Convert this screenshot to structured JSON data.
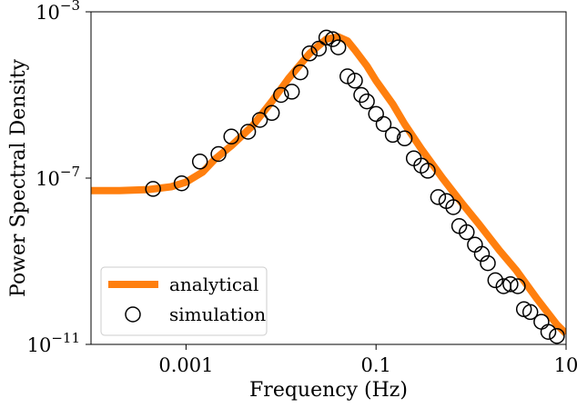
{
  "chart_data": {
    "type": "line",
    "xlabel": "Frequency (Hz)",
    "ylabel": "Power Spectral Density",
    "x_scale": "log",
    "y_scale": "log",
    "xlim": [
      0.0001,
      10
    ],
    "ylim": [
      1e-11,
      0.001
    ],
    "grid": false,
    "legend_position": "lower-left",
    "x_ticks": [
      {
        "value": 0.001,
        "label": "0.001"
      },
      {
        "value": 0.1,
        "label": "0.1"
      },
      {
        "value": 10,
        "label": "10"
      }
    ],
    "y_ticks": [
      {
        "value": 1e-11,
        "base": "10",
        "exp": "−11"
      },
      {
        "value": 1e-07,
        "base": "10",
        "exp": "−7"
      },
      {
        "value": 0.001,
        "base": "10",
        "exp": "−3"
      }
    ],
    "series": [
      {
        "name": "analytical",
        "style": "line",
        "color": "#ff7f0e",
        "x": [
          0.0001,
          0.0002,
          0.0004,
          0.0007,
          0.001,
          0.0015,
          0.002,
          0.003,
          0.005,
          0.008,
          0.012,
          0.02,
          0.03,
          0.04,
          0.05,
          0.06,
          0.08,
          0.1,
          0.15,
          0.2,
          0.3,
          0.5,
          0.8,
          1.2,
          2,
          3,
          5,
          8,
          10
        ],
        "y": [
          5e-08,
          5e-08,
          5.3e-08,
          6.2e-08,
          8e-08,
          1.4e-07,
          2.8e-07,
          6e-07,
          1.8e-06,
          7e-06,
          2.5e-05,
          0.0001,
          0.00022,
          0.00025,
          0.0002,
          0.00012,
          5e-05,
          2.2e-05,
          6e-06,
          2e-06,
          5e-07,
          1e-07,
          2.5e-08,
          8e-09,
          1.8e-09,
          6e-10,
          1.2e-10,
          3e-11,
          1.8e-11
        ]
      },
      {
        "name": "simulation",
        "style": "scatter",
        "color": "#000000",
        "x": [
          0.00045,
          0.0009,
          0.0014,
          0.0022,
          0.003,
          0.0045,
          0.006,
          0.008,
          0.01,
          0.013,
          0.016,
          0.02,
          0.025,
          0.03,
          0.035,
          0.04,
          0.05,
          0.06,
          0.07,
          0.08,
          0.1,
          0.12,
          0.15,
          0.2,
          0.25,
          0.3,
          0.35,
          0.45,
          0.55,
          0.65,
          0.75,
          0.9,
          1.1,
          1.3,
          1.5,
          1.8,
          2.2,
          2.6,
          3.1,
          3.6,
          4.2,
          5.5,
          6.5,
          8
        ],
        "y": [
          5.5e-08,
          7.5e-08,
          2.5e-07,
          3.8e-07,
          1e-06,
          1.3e-06,
          2.5e-06,
          3.7e-06,
          1e-05,
          1.2e-05,
          3.5e-05,
          0.0001,
          0.00013,
          0.00024,
          0.00022,
          0.00014,
          2.8e-05,
          2.2e-05,
          1e-05,
          7e-06,
          3.5e-06,
          2e-06,
          1.1e-06,
          9e-07,
          3e-07,
          2e-07,
          1.5e-07,
          3.5e-08,
          2.8e-08,
          2e-08,
          7e-09,
          5e-09,
          2.5e-09,
          1.5e-09,
          9e-10,
          3.5e-10,
          2.5e-10,
          2.8e-10,
          2.5e-10,
          7e-11,
          6e-11,
          3.5e-11,
          2e-11,
          1.6e-11
        ]
      }
    ]
  }
}
